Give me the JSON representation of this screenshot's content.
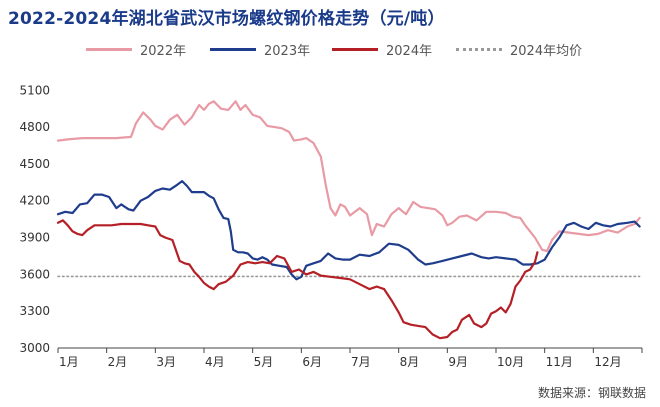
{
  "title": "2022-2024年湖北省武汉市场螺纹钢价格走势（元/吨）",
  "source": "数据来源：钢联数据",
  "colors": {
    "s2022": "#e89aa5",
    "s2023": "#1f3d8c",
    "s2024": "#b52026",
    "avg": "#9a9a9a"
  },
  "chart_data": {
    "type": "line",
    "title": "2022-2024年湖北省武汉市场螺纹钢价格走势（元/吨）",
    "x_unit": "month",
    "xlim": [
      1,
      13
    ],
    "x_ticks": [
      "1月",
      "2月",
      "3月",
      "4月",
      "5月",
      "6月",
      "7月",
      "8月",
      "9月",
      "10月",
      "11月",
      "12月"
    ],
    "ylim": [
      3000,
      5200
    ],
    "y_ticks": [
      "3000",
      "3300",
      "3600",
      "3900",
      "4200",
      "4500",
      "4800",
      "5100"
    ],
    "y_tick_values": [
      3000,
      3300,
      3600,
      3900,
      4200,
      4500,
      4800,
      5100
    ],
    "grid": false,
    "legend_position": "top",
    "series": [
      {
        "name": "2022年",
        "style": "solid",
        "color_key": "s2022",
        "points": [
          [
            1.0,
            4690
          ],
          [
            1.2,
            4700
          ],
          [
            1.5,
            4710
          ],
          [
            1.8,
            4710
          ],
          [
            2.2,
            4710
          ],
          [
            2.5,
            4720
          ],
          [
            2.6,
            4830
          ],
          [
            2.75,
            4920
          ],
          [
            2.9,
            4860
          ],
          [
            3.0,
            4810
          ],
          [
            3.15,
            4780
          ],
          [
            3.3,
            4860
          ],
          [
            3.45,
            4900
          ],
          [
            3.6,
            4820
          ],
          [
            3.75,
            4880
          ],
          [
            3.9,
            4980
          ],
          [
            4.0,
            4940
          ],
          [
            4.1,
            4990
          ],
          [
            4.2,
            5010
          ],
          [
            4.35,
            4950
          ],
          [
            4.5,
            4940
          ],
          [
            4.65,
            5010
          ],
          [
            4.75,
            4940
          ],
          [
            4.85,
            4980
          ],
          [
            5.0,
            4900
          ],
          [
            5.15,
            4880
          ],
          [
            5.3,
            4810
          ],
          [
            5.45,
            4800
          ],
          [
            5.6,
            4790
          ],
          [
            5.75,
            4760
          ],
          [
            5.85,
            4690
          ],
          [
            6.0,
            4700
          ],
          [
            6.1,
            4710
          ],
          [
            6.25,
            4670
          ],
          [
            6.4,
            4560
          ],
          [
            6.5,
            4330
          ],
          [
            6.6,
            4140
          ],
          [
            6.7,
            4080
          ],
          [
            6.8,
            4170
          ],
          [
            6.9,
            4150
          ],
          [
            7.0,
            4080
          ],
          [
            7.2,
            4140
          ],
          [
            7.35,
            4090
          ],
          [
            7.45,
            3920
          ],
          [
            7.55,
            4010
          ],
          [
            7.7,
            3990
          ],
          [
            7.85,
            4090
          ],
          [
            8.0,
            4140
          ],
          [
            8.15,
            4090
          ],
          [
            8.3,
            4190
          ],
          [
            8.45,
            4150
          ],
          [
            8.6,
            4140
          ],
          [
            8.75,
            4130
          ],
          [
            8.9,
            4080
          ],
          [
            9.0,
            4000
          ],
          [
            9.1,
            4020
          ],
          [
            9.25,
            4070
          ],
          [
            9.4,
            4080
          ],
          [
            9.6,
            4040
          ],
          [
            9.8,
            4110
          ],
          [
            10.0,
            4110
          ],
          [
            10.2,
            4100
          ],
          [
            10.35,
            4070
          ],
          [
            10.5,
            4060
          ],
          [
            10.6,
            4000
          ],
          [
            10.8,
            3900
          ],
          [
            10.95,
            3800
          ],
          [
            11.05,
            3790
          ],
          [
            11.15,
            3880
          ],
          [
            11.3,
            3950
          ],
          [
            11.5,
            3940
          ],
          [
            11.7,
            3930
          ],
          [
            11.9,
            3920
          ],
          [
            12.1,
            3930
          ],
          [
            12.3,
            3960
          ],
          [
            12.5,
            3940
          ],
          [
            12.7,
            3990
          ],
          [
            12.85,
            4010
          ],
          [
            12.95,
            4060
          ]
        ]
      },
      {
        "name": "2023年",
        "style": "solid",
        "color_key": "s2023",
        "points": [
          [
            1.0,
            4090
          ],
          [
            1.15,
            4110
          ],
          [
            1.3,
            4100
          ],
          [
            1.45,
            4170
          ],
          [
            1.6,
            4180
          ],
          [
            1.75,
            4250
          ],
          [
            1.9,
            4250
          ],
          [
            2.05,
            4230
          ],
          [
            2.2,
            4140
          ],
          [
            2.3,
            4170
          ],
          [
            2.45,
            4130
          ],
          [
            2.55,
            4120
          ],
          [
            2.7,
            4200
          ],
          [
            2.85,
            4230
          ],
          [
            3.0,
            4280
          ],
          [
            3.15,
            4300
          ],
          [
            3.3,
            4290
          ],
          [
            3.45,
            4330
          ],
          [
            3.55,
            4360
          ],
          [
            3.65,
            4320
          ],
          [
            3.75,
            4270
          ],
          [
            3.9,
            4270
          ],
          [
            4.0,
            4270
          ],
          [
            4.1,
            4240
          ],
          [
            4.2,
            4220
          ],
          [
            4.3,
            4130
          ],
          [
            4.4,
            4060
          ],
          [
            4.5,
            4050
          ],
          [
            4.55,
            3950
          ],
          [
            4.6,
            3800
          ],
          [
            4.7,
            3780
          ],
          [
            4.8,
            3780
          ],
          [
            4.9,
            3770
          ],
          [
            5.0,
            3730
          ],
          [
            5.1,
            3720
          ],
          [
            5.2,
            3740
          ],
          [
            5.3,
            3720
          ],
          [
            5.4,
            3680
          ],
          [
            5.55,
            3670
          ],
          [
            5.7,
            3660
          ],
          [
            5.8,
            3600
          ],
          [
            5.9,
            3560
          ],
          [
            6.0,
            3580
          ],
          [
            6.1,
            3670
          ],
          [
            6.25,
            3690
          ],
          [
            6.4,
            3710
          ],
          [
            6.55,
            3770
          ],
          [
            6.7,
            3730
          ],
          [
            6.85,
            3720
          ],
          [
            7.0,
            3720
          ],
          [
            7.2,
            3760
          ],
          [
            7.4,
            3750
          ],
          [
            7.6,
            3780
          ],
          [
            7.8,
            3850
          ],
          [
            8.0,
            3840
          ],
          [
            8.2,
            3800
          ],
          [
            8.4,
            3720
          ],
          [
            8.55,
            3680
          ],
          [
            8.7,
            3690
          ],
          [
            8.9,
            3710
          ],
          [
            9.1,
            3730
          ],
          [
            9.3,
            3750
          ],
          [
            9.5,
            3770
          ],
          [
            9.7,
            3740
          ],
          [
            9.85,
            3730
          ],
          [
            10.0,
            3740
          ],
          [
            10.2,
            3730
          ],
          [
            10.4,
            3720
          ],
          [
            10.55,
            3680
          ],
          [
            10.7,
            3680
          ],
          [
            10.85,
            3690
          ],
          [
            11.0,
            3720
          ],
          [
            11.15,
            3820
          ],
          [
            11.3,
            3900
          ],
          [
            11.45,
            4000
          ],
          [
            11.6,
            4020
          ],
          [
            11.75,
            3990
          ],
          [
            11.9,
            3970
          ],
          [
            12.05,
            4020
          ],
          [
            12.2,
            4000
          ],
          [
            12.35,
            3990
          ],
          [
            12.5,
            4010
          ],
          [
            12.7,
            4020
          ],
          [
            12.85,
            4030
          ],
          [
            12.95,
            3990
          ]
        ]
      },
      {
        "name": "2024年",
        "style": "solid",
        "color_key": "s2024",
        "points": [
          [
            1.0,
            4020
          ],
          [
            1.1,
            4040
          ],
          [
            1.2,
            4000
          ],
          [
            1.3,
            3950
          ],
          [
            1.4,
            3930
          ],
          [
            1.5,
            3920
          ],
          [
            1.6,
            3960
          ],
          [
            1.75,
            4000
          ],
          [
            1.9,
            4000
          ],
          [
            2.1,
            4000
          ],
          [
            2.3,
            4010
          ],
          [
            2.5,
            4010
          ],
          [
            2.7,
            4010
          ],
          [
            2.85,
            4000
          ],
          [
            3.0,
            3990
          ],
          [
            3.1,
            3920
          ],
          [
            3.2,
            3900
          ],
          [
            3.35,
            3880
          ],
          [
            3.5,
            3710
          ],
          [
            3.6,
            3690
          ],
          [
            3.7,
            3680
          ],
          [
            3.8,
            3620
          ],
          [
            3.9,
            3580
          ],
          [
            4.0,
            3530
          ],
          [
            4.1,
            3500
          ],
          [
            4.2,
            3480
          ],
          [
            4.3,
            3520
          ],
          [
            4.45,
            3540
          ],
          [
            4.6,
            3590
          ],
          [
            4.75,
            3680
          ],
          [
            4.9,
            3700
          ],
          [
            5.05,
            3690
          ],
          [
            5.2,
            3700
          ],
          [
            5.35,
            3690
          ],
          [
            5.5,
            3750
          ],
          [
            5.65,
            3730
          ],
          [
            5.8,
            3620
          ],
          [
            5.95,
            3640
          ],
          [
            6.1,
            3600
          ],
          [
            6.25,
            3620
          ],
          [
            6.4,
            3590
          ],
          [
            6.6,
            3580
          ],
          [
            6.8,
            3570
          ],
          [
            7.0,
            3560
          ],
          [
            7.2,
            3520
          ],
          [
            7.4,
            3480
          ],
          [
            7.55,
            3500
          ],
          [
            7.7,
            3480
          ],
          [
            7.85,
            3390
          ],
          [
            8.0,
            3290
          ],
          [
            8.1,
            3210
          ],
          [
            8.25,
            3190
          ],
          [
            8.4,
            3180
          ],
          [
            8.55,
            3170
          ],
          [
            8.7,
            3110
          ],
          [
            8.85,
            3080
          ],
          [
            9.0,
            3090
          ],
          [
            9.1,
            3130
          ],
          [
            9.2,
            3150
          ],
          [
            9.3,
            3230
          ],
          [
            9.45,
            3270
          ],
          [
            9.55,
            3200
          ],
          [
            9.7,
            3170
          ],
          [
            9.8,
            3200
          ],
          [
            9.9,
            3280
          ],
          [
            10.0,
            3300
          ],
          [
            10.1,
            3330
          ],
          [
            10.2,
            3290
          ],
          [
            10.3,
            3360
          ],
          [
            10.4,
            3500
          ],
          [
            10.5,
            3550
          ],
          [
            10.6,
            3620
          ],
          [
            10.7,
            3640
          ],
          [
            10.8,
            3700
          ],
          [
            10.85,
            3780
          ]
        ]
      },
      {
        "name": "2024年均价",
        "style": "dotted",
        "color_key": "avg",
        "points": [
          [
            1.0,
            3583
          ],
          [
            12.95,
            3583
          ]
        ]
      }
    ]
  }
}
